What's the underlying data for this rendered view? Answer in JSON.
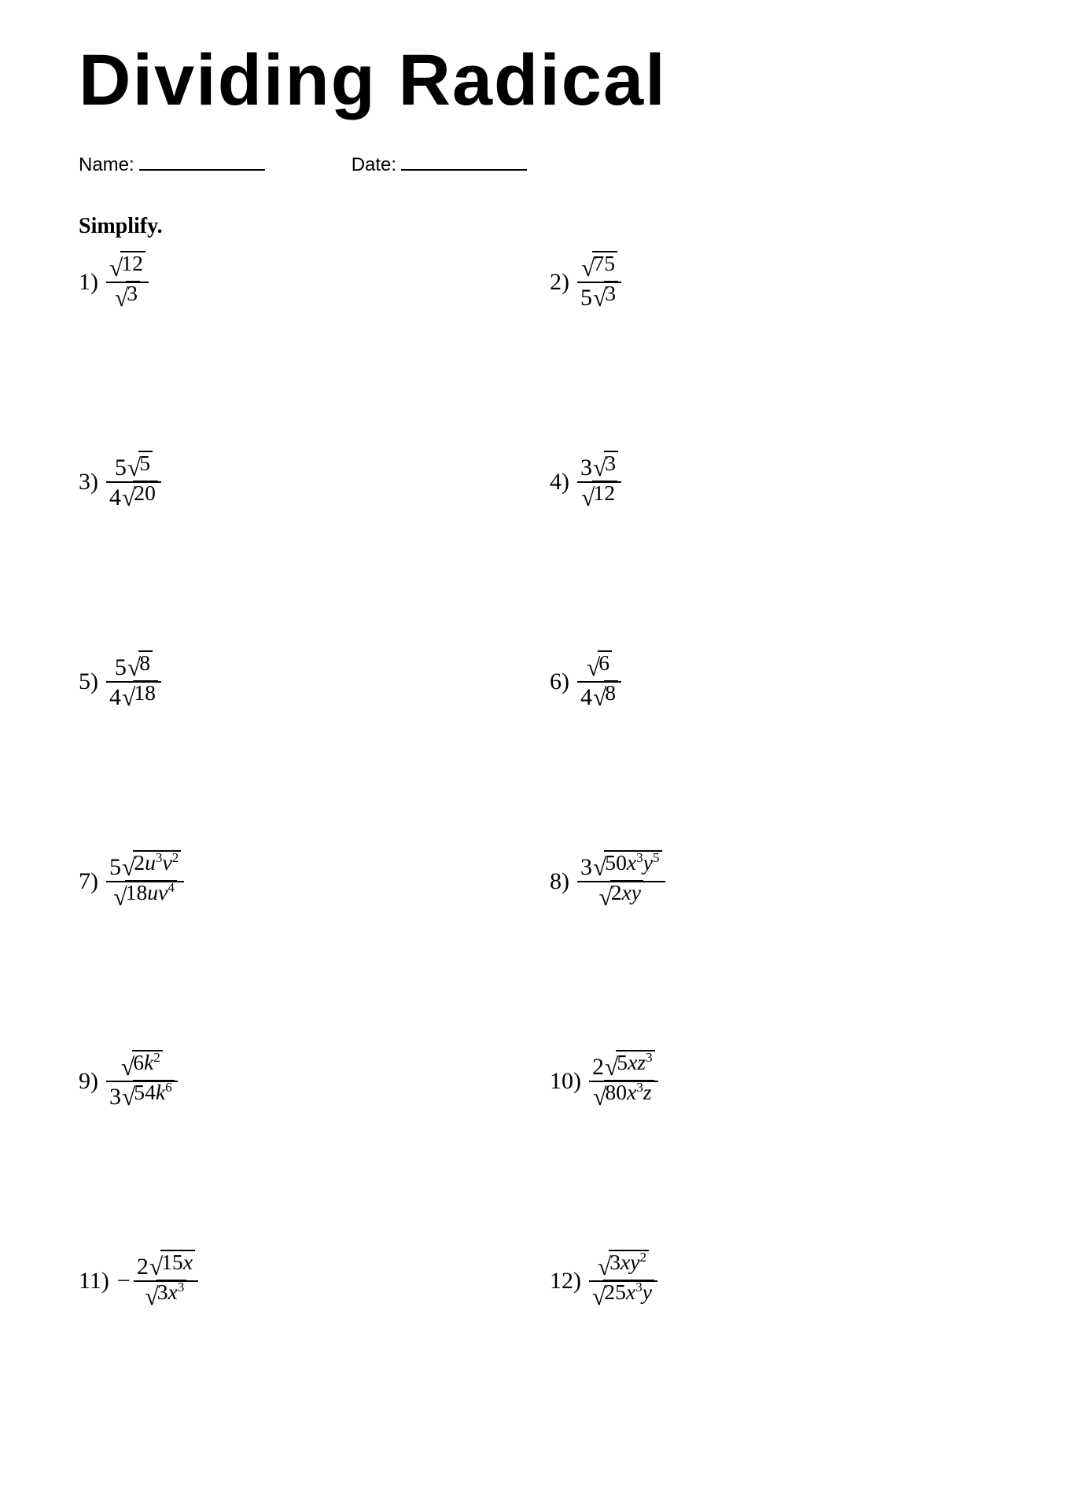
{
  "title": "Dividing Radical",
  "meta": {
    "name_label": "Name:",
    "date_label": "Date:"
  },
  "instruction": "Simplify.",
  "text_color": "#000000",
  "background_color": "#ffffff",
  "title_fontsize": 92,
  "body_fontsize": 30,
  "problems": [
    {
      "n": "1)",
      "num_coef": "",
      "num_rad": "12",
      "den_coef": "",
      "den_rad": "3",
      "negative": false
    },
    {
      "n": "2)",
      "num_coef": "",
      "num_rad": "75",
      "den_coef": "5",
      "den_rad": "3",
      "negative": false
    },
    {
      "n": "3)",
      "num_coef": "5",
      "num_rad": "5",
      "den_coef": "4",
      "den_rad": "20",
      "negative": false
    },
    {
      "n": "4)",
      "num_coef": "3",
      "num_rad": "3",
      "den_coef": "",
      "den_rad": "12",
      "negative": false
    },
    {
      "n": "5)",
      "num_coef": "5",
      "num_rad": "8",
      "den_coef": "4",
      "den_rad": "18",
      "negative": false
    },
    {
      "n": "6)",
      "num_coef": "",
      "num_rad": "6",
      "den_coef": "4",
      "den_rad": "8",
      "negative": false
    },
    {
      "n": "7)",
      "num_coef": "5",
      "num_rad": "2u^3v^2",
      "den_coef": "",
      "den_rad": "18uv^4",
      "negative": false
    },
    {
      "n": "8)",
      "num_coef": "3",
      "num_rad": "50x^3y^5",
      "den_coef": "",
      "den_rad": "2xy",
      "negative": false
    },
    {
      "n": "9)",
      "num_coef": "",
      "num_rad": "6k^2",
      "den_coef": "3",
      "den_rad": "54k^6",
      "negative": false
    },
    {
      "n": "10)",
      "num_coef": "2",
      "num_rad": "5xz^3",
      "den_coef": "",
      "den_rad": "80x^3z",
      "negative": false
    },
    {
      "n": "11)",
      "num_coef": "2",
      "num_rad": "15x",
      "den_coef": "",
      "den_rad": "3x^3",
      "negative": true
    },
    {
      "n": "12)",
      "num_coef": "",
      "num_rad": "3xy^2",
      "den_coef": "",
      "den_rad": "25x^3y",
      "negative": false
    }
  ]
}
